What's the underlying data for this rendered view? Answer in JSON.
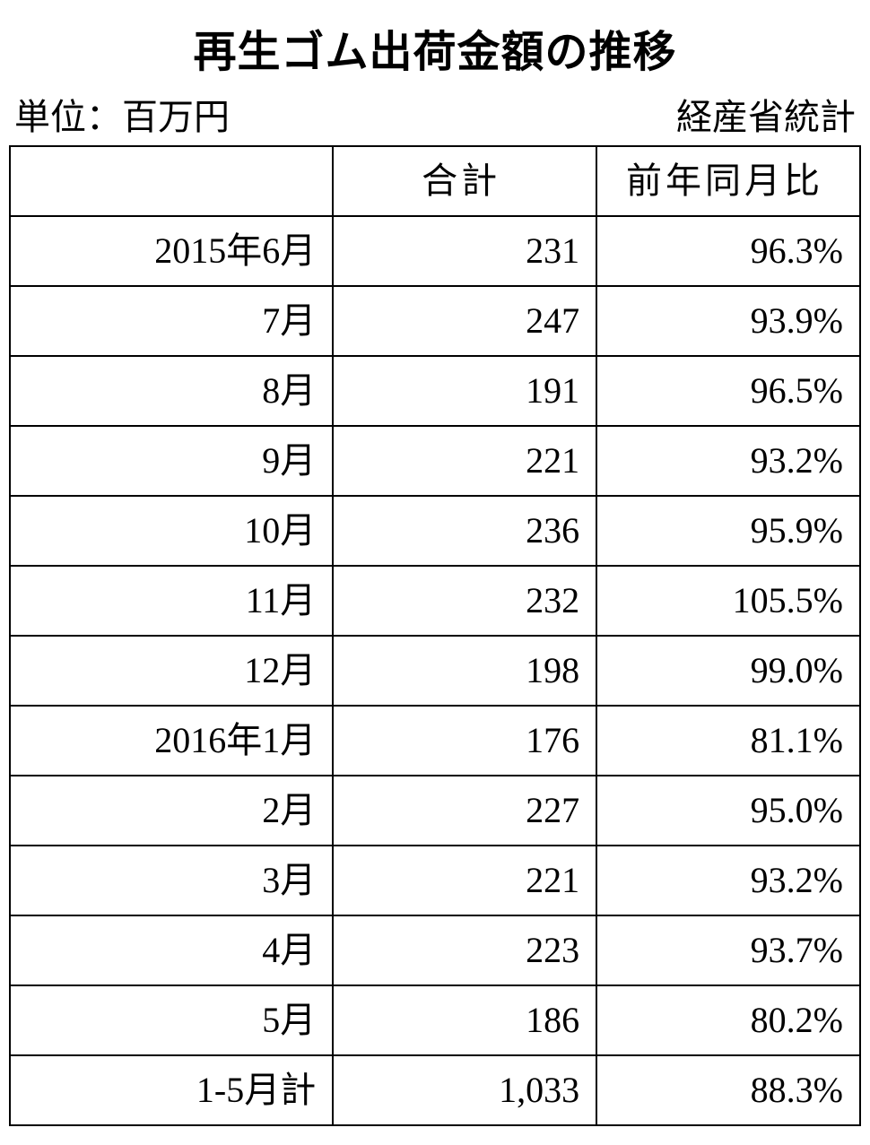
{
  "title": "再生ゴム出荷金額の推移",
  "unit_label": "単位：百万円",
  "source_label": "経産省統計",
  "table": {
    "columns": {
      "period": "",
      "total": "合計",
      "yoy": "前年同月比"
    },
    "rows": [
      {
        "period": "2015年6月",
        "total": "231",
        "yoy": "96.3%"
      },
      {
        "period": "7月",
        "total": "247",
        "yoy": "93.9%"
      },
      {
        "period": "8月",
        "total": "191",
        "yoy": "96.5%"
      },
      {
        "period": "9月",
        "total": "221",
        "yoy": "93.2%"
      },
      {
        "period": "10月",
        "total": "236",
        "yoy": "95.9%"
      },
      {
        "period": "11月",
        "total": "232",
        "yoy": "105.5%"
      },
      {
        "period": "12月",
        "total": "198",
        "yoy": "99.0%"
      },
      {
        "period": "2016年1月",
        "total": "176",
        "yoy": "81.1%"
      },
      {
        "period": "2月",
        "total": "227",
        "yoy": "95.0%"
      },
      {
        "period": "3月",
        "total": "221",
        "yoy": "93.2%"
      },
      {
        "period": "4月",
        "total": "223",
        "yoy": "93.7%"
      },
      {
        "period": "5月",
        "total": "186",
        "yoy": "80.2%"
      },
      {
        "period": "1-5月計",
        "total": "1,033",
        "yoy": "88.3%"
      }
    ]
  },
  "style": {
    "background_color": "#ffffff",
    "text_color": "#000000",
    "border_color": "#000000",
    "title_fontsize": 48,
    "cell_fontsize": 40,
    "title_font_family": "sans-serif",
    "body_font_family": "serif"
  }
}
